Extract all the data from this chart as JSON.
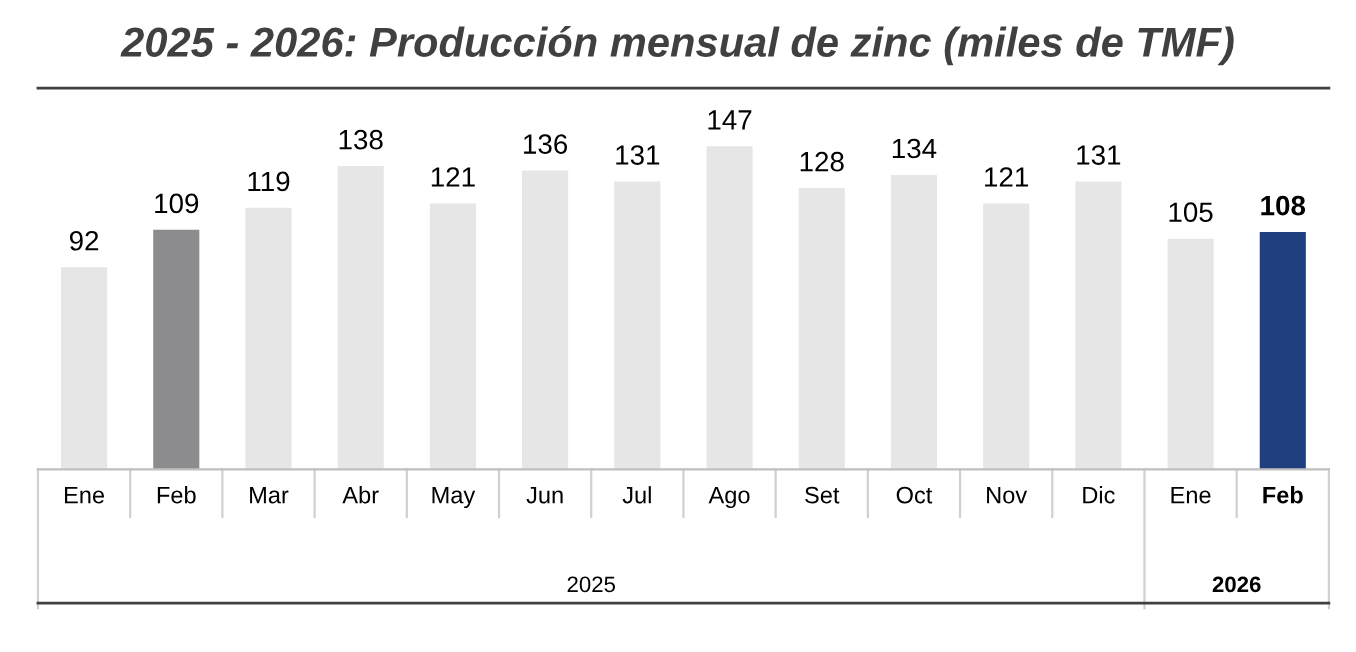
{
  "chart_data": {
    "type": "bar",
    "title": "2025 - 2026: Producción mensual de zinc (miles de TMF)",
    "categories": [
      "Ene",
      "Feb",
      "Mar",
      "Abr",
      "May",
      "Jun",
      "Jul",
      "Ago",
      "Set",
      "Oct",
      "Nov",
      "Dic",
      "Ene",
      "Feb"
    ],
    "values": [
      92,
      109,
      119,
      138,
      121,
      136,
      131,
      147,
      128,
      134,
      121,
      131,
      105,
      108
    ],
    "colors": [
      "#e6e6e7",
      "#8c8c8e",
      "#e6e6e7",
      "#e6e6e7",
      "#e6e6e7",
      "#e6e6e7",
      "#e6e6e7",
      "#e6e6e7",
      "#e6e6e7",
      "#e6e6e7",
      "#e6e6e7",
      "#e6e6e7",
      "#e6e6e7",
      "#1f3f7f"
    ],
    "annotations": [
      "2025",
      "2026"
    ],
    "data_labels": true,
    "grid": false,
    "legend": false
  }
}
